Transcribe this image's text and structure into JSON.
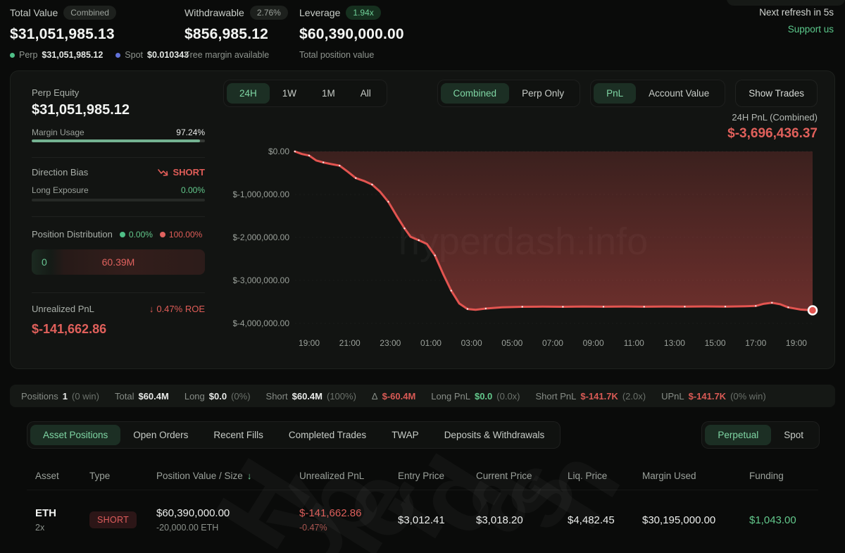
{
  "colors": {
    "green": "#6fcf97",
    "red": "#e05a54",
    "chart_line": "#e25450",
    "chart_fill": "224,82,78"
  },
  "header": {
    "total": {
      "label": "Total Value",
      "badge": "Combined",
      "value": "$31,051,985.13",
      "perp_label": "Perp",
      "perp_value": "$31,051,985.12",
      "spot_label": "Spot",
      "spot_value": "$0.010343"
    },
    "withdrawable": {
      "label": "Withdrawable",
      "badge": "2.76%",
      "value": "$856,985.12",
      "sub": "Free margin available"
    },
    "leverage": {
      "label": "Leverage",
      "badge": "1.94x",
      "value": "$60,390,000.00",
      "sub": "Total position value"
    },
    "refresh_text": "Next refresh in 5s",
    "support_link": "Support us"
  },
  "equity_panel": {
    "perp_equity_label": "Perp Equity",
    "perp_equity_value": "$31,051,985.12",
    "margin_usage_label": "Margin Usage",
    "margin_usage_value": "97.24%",
    "margin_usage_pct": 97.24,
    "direction_bias_label": "Direction Bias",
    "direction_bias_value": "SHORT",
    "long_exposure_label": "Long Exposure",
    "long_exposure_value": "0.00%",
    "long_exposure_pct": 0,
    "distribution_label": "Position Distribution",
    "distribution_long_pct": "0.00%",
    "distribution_short_pct": "100.00%",
    "distribution_long_value": "0",
    "distribution_short_value": "60.39M",
    "unrealized_pnl_label": "Unrealized PnL",
    "unrealized_roe": "0.47% ROE",
    "unrealized_pnl_value": "$-141,662.86"
  },
  "chart_controls": {
    "time_tabs": [
      "24H",
      "1W",
      "1M",
      "All"
    ],
    "time_selected": "24H",
    "mode_tabs": [
      "Combined",
      "Perp Only"
    ],
    "mode_selected": "Combined",
    "metric_tabs": [
      "PnL",
      "Account Value"
    ],
    "metric_selected": "PnL",
    "show_trades_label": "Show Trades",
    "pnl_label": "24H PnL (Combined)",
    "pnl_value": "$-3,696,436.37"
  },
  "chart_data": {
    "type": "area",
    "title": "24H PnL (Combined)",
    "legend_position": "none",
    "grid": "faint-horizontal",
    "watermark": "hyperdash.info",
    "x_ticks": [
      "19:00",
      "21:00",
      "23:00",
      "01:00",
      "03:00",
      "05:00",
      "07:00",
      "09:00",
      "11:00",
      "13:00",
      "15:00",
      "17:00",
      "19:00"
    ],
    "x_tick_hours": [
      0,
      2,
      4,
      6,
      8,
      10,
      12,
      14,
      16,
      18,
      20,
      22,
      24
    ],
    "y_ticks": {
      "values": [
        0,
        -1000000,
        -2000000,
        -3000000,
        -4000000
      ],
      "labels": [
        "$0.00",
        "$-1,000,000.00",
        "$-2,000,000.00",
        "$-3,000,000.00",
        "$-4,000,000.00"
      ]
    },
    "y_range": [
      0,
      -4000000
    ],
    "end_value": -3696436.37,
    "series": [
      {
        "name": "PnL (Combined)",
        "points": [
          [
            -0.7,
            0
          ],
          [
            -0.35,
            -60000
          ],
          [
            0,
            -95000
          ],
          [
            0.35,
            -210000
          ],
          [
            0.7,
            -255000
          ],
          [
            1.1,
            -295000
          ],
          [
            1.5,
            -330000
          ],
          [
            1.9,
            -470000
          ],
          [
            2.3,
            -620000
          ],
          [
            2.7,
            -685000
          ],
          [
            3.1,
            -770000
          ],
          [
            3.5,
            -940000
          ],
          [
            3.9,
            -1170000
          ],
          [
            4.3,
            -1490000
          ],
          [
            4.7,
            -1790000
          ],
          [
            5.0,
            -1985000
          ],
          [
            5.4,
            -2065000
          ],
          [
            5.8,
            -2150000
          ],
          [
            6.2,
            -2420000
          ],
          [
            6.6,
            -2850000
          ],
          [
            7.0,
            -3240000
          ],
          [
            7.4,
            -3540000
          ],
          [
            7.8,
            -3665000
          ],
          [
            8.2,
            -3685000
          ],
          [
            8.7,
            -3655000
          ],
          [
            9.5,
            -3628000
          ],
          [
            10.5,
            -3615000
          ],
          [
            11.5,
            -3612000
          ],
          [
            12.5,
            -3614000
          ],
          [
            13.5,
            -3609000
          ],
          [
            14.5,
            -3613000
          ],
          [
            15.5,
            -3609000
          ],
          [
            16.5,
            -3613000
          ],
          [
            17.5,
            -3609000
          ],
          [
            18.5,
            -3611000
          ],
          [
            19.5,
            -3607000
          ],
          [
            20.5,
            -3610000
          ],
          [
            21.5,
            -3603000
          ],
          [
            22.0,
            -3595000
          ],
          [
            22.4,
            -3545000
          ],
          [
            22.8,
            -3522000
          ],
          [
            23.2,
            -3556000
          ],
          [
            23.6,
            -3628000
          ],
          [
            24.2,
            -3678000
          ],
          [
            24.8,
            -3696436
          ]
        ]
      }
    ]
  },
  "positions_bar": {
    "items": [
      {
        "label": "Positions",
        "value": "1",
        "paren": "(0 win)",
        "tone": "white"
      },
      {
        "label": "Total",
        "value": "$60.4M",
        "paren": "",
        "tone": "white"
      },
      {
        "label": "Long",
        "value": "$0.0",
        "paren": "(0%)",
        "tone": "white"
      },
      {
        "label": "Short",
        "value": "$60.4M",
        "paren": "(100%)",
        "tone": "white"
      },
      {
        "label": "Δ",
        "value": "$-60.4M",
        "paren": "",
        "tone": "red"
      },
      {
        "label": "Long PnL",
        "value": "$0.0",
        "paren": "(0.0x)",
        "tone": "green"
      },
      {
        "label": "Short PnL",
        "value": "$-141.7K",
        "paren": "(2.0x)",
        "tone": "red"
      },
      {
        "label": "UPnL",
        "value": "$-141.7K",
        "paren": "(0% win)",
        "tone": "red"
      }
    ]
  },
  "bottom_tabs": {
    "tabs": [
      "Asset Positions",
      "Open Orders",
      "Recent Fills",
      "Completed Trades",
      "TWAP",
      "Deposits & Withdrawals"
    ],
    "selected": "Asset Positions",
    "market_tabs": [
      "Perpetual",
      "Spot"
    ],
    "market_selected": "Perpetual"
  },
  "table": {
    "columns": [
      "Asset",
      "Type",
      "Position Value / Size",
      "Unrealized PnL",
      "Entry Price",
      "Current Price",
      "Liq. Price",
      "Margin Used",
      "Funding"
    ],
    "sort_column": "Position Value / Size",
    "rows": [
      {
        "asset": "ETH",
        "leverage": "2x",
        "type": "SHORT",
        "position_value": "$60,390,000.00",
        "size": "-20,000.00 ETH",
        "upnl": "$-141,662.86",
        "upnl_pct": "-0.47%",
        "entry_price": "$3,012.41",
        "current_price": "$3,018.20",
        "liq_price": "$4,482.45",
        "margin_used": "$30,195,000.00",
        "funding": "$1,043.00"
      }
    ]
  },
  "watermarks": {
    "page": "Hyperdash",
    "chart": "hyperdash.info"
  }
}
